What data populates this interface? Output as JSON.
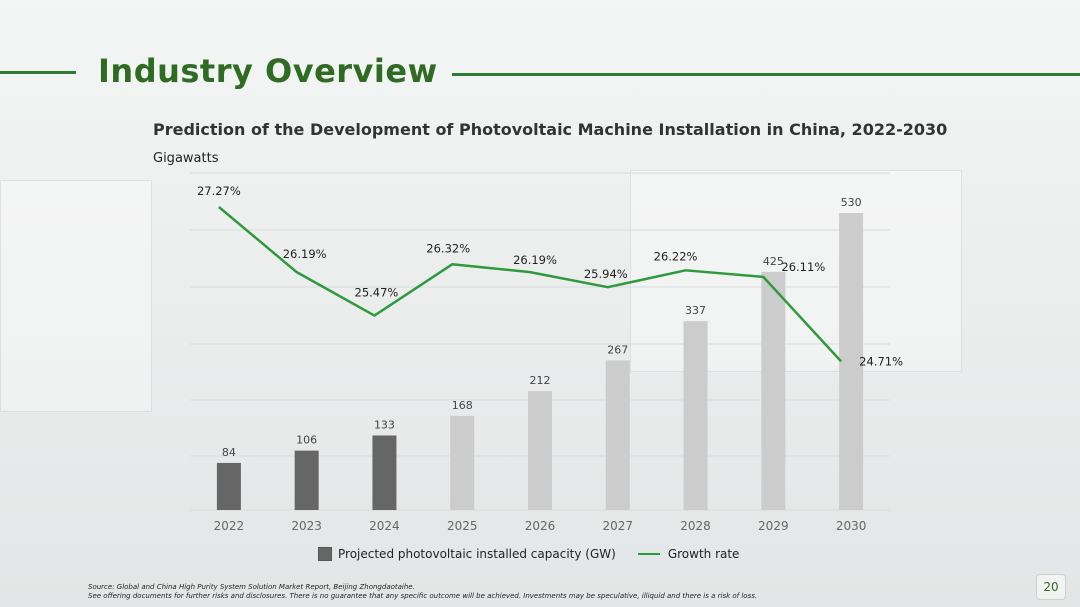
{
  "header": {
    "title": "Industry Overview"
  },
  "chart_data": {
    "type": "bar",
    "title": "Prediction of the Development of Photovoltaic Machine Installation in China, 2022-2030",
    "unit_label": "Gigawatts",
    "categories": [
      "2022",
      "2023",
      "2024",
      "2025",
      "2026",
      "2027",
      "2028",
      "2029",
      "2030"
    ],
    "series": [
      {
        "name": "Projected photovoltaic installed capacity (GW)",
        "type": "bar",
        "values": [
          84,
          106,
          133,
          168,
          212,
          267,
          337,
          425,
          530
        ],
        "colors": [
          "#666666",
          "#666666",
          "#666666",
          "#cccccc",
          "#cccccc",
          "#cccccc",
          "#cccccc",
          "#cccccc",
          "#cccccc"
        ]
      },
      {
        "name": "Growth rate",
        "type": "line",
        "values": [
          27.27,
          26.19,
          25.47,
          26.32,
          26.19,
          25.94,
          26.22,
          26.11,
          24.71
        ],
        "labels": [
          "27.27%",
          "26.19%",
          "25.47%",
          "26.32%",
          "26.19%",
          "25.94%",
          "26.22%",
          "26.11%",
          "24.71%"
        ],
        "color": "#2e9a3c"
      }
    ],
    "legend_position": "bottom",
    "grid": true
  },
  "footer": {
    "source": "Source: Global and China High Purity System Solution Market Report, Beijing Zhongdaotaihe.",
    "disclaimer": "See offering documents for further risks and disclosures. There is no guarantee that any specific outcome will be achieved. Investments may be speculative, illiquid and there is a risk of loss."
  },
  "page": {
    "number": "20"
  }
}
